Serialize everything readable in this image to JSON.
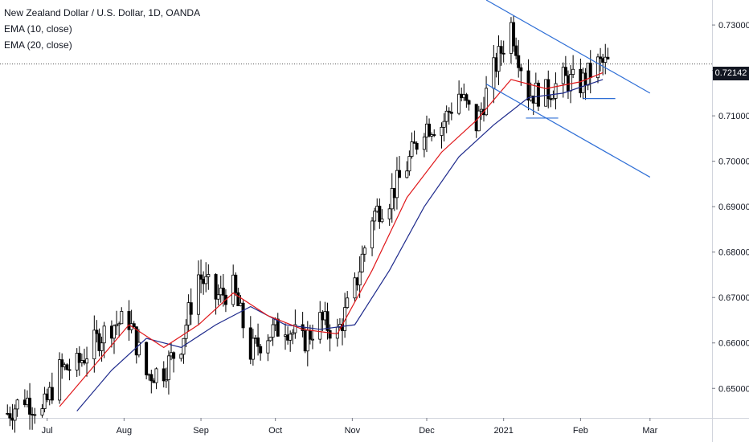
{
  "chart_data": {
    "type": "candlestick",
    "title": "New Zealand Dollar / U.S. Dollar, 1D, OANDA",
    "indicators": [
      "EMA (10, close)",
      "EMA (20, close)"
    ],
    "last_price": "0.72142",
    "y_ticks": [
      "0.73000",
      "0.72000",
      "0.71000",
      "0.70000",
      "0.69000",
      "0.68000",
      "0.67000",
      "0.66000",
      "0.65000"
    ],
    "y_tick_values": [
      0.73,
      0.72,
      0.71,
      0.7,
      0.69,
      0.68,
      0.67,
      0.66,
      0.65
    ],
    "ylim": [
      0.6435,
      0.7355
    ],
    "x_ticks": [
      "Jul",
      "Aug",
      "Sep",
      "Oct",
      "Nov",
      "Dec",
      "2021",
      "Feb",
      "Mar"
    ],
    "x_tick_dates": [
      "2020-07-01",
      "2020-08-01",
      "2020-09-01",
      "2020-10-01",
      "2020-11-01",
      "2020-12-01",
      "2021-01-01",
      "2021-02-01",
      "2021-03-01"
    ],
    "xlim": [
      "2020-06-12",
      "2021-03-26"
    ],
    "close_series": [
      {
        "date": "2020-06-15",
        "value": 0.6445
      },
      {
        "date": "2020-06-22",
        "value": 0.648
      },
      {
        "date": "2020-06-29",
        "value": 0.6445
      },
      {
        "date": "2020-07-06",
        "value": 0.654
      },
      {
        "date": "2020-07-13",
        "value": 0.655
      },
      {
        "date": "2020-07-20",
        "value": 0.66
      },
      {
        "date": "2020-07-27",
        "value": 0.664
      },
      {
        "date": "2020-08-03",
        "value": 0.665
      },
      {
        "date": "2020-08-10",
        "value": 0.653
      },
      {
        "date": "2020-08-17",
        "value": 0.654
      },
      {
        "date": "2020-08-24",
        "value": 0.66
      },
      {
        "date": "2020-08-31",
        "value": 0.675
      },
      {
        "date": "2020-09-07",
        "value": 0.67
      },
      {
        "date": "2020-09-14",
        "value": 0.672
      },
      {
        "date": "2020-09-21",
        "value": 0.658
      },
      {
        "date": "2020-09-28",
        "value": 0.662
      },
      {
        "date": "2020-10-05",
        "value": 0.664
      },
      {
        "date": "2020-10-12",
        "value": 0.66
      },
      {
        "date": "2020-10-19",
        "value": 0.665
      },
      {
        "date": "2020-10-26",
        "value": 0.662
      },
      {
        "date": "2020-11-02",
        "value": 0.672
      },
      {
        "date": "2020-11-09",
        "value": 0.688
      },
      {
        "date": "2020-11-16",
        "value": 0.692
      },
      {
        "date": "2020-11-23",
        "value": 0.699
      },
      {
        "date": "2020-11-30",
        "value": 0.708
      },
      {
        "date": "2020-12-07",
        "value": 0.708
      },
      {
        "date": "2020-12-14",
        "value": 0.715
      },
      {
        "date": "2020-12-21",
        "value": 0.708
      },
      {
        "date": "2020-12-28",
        "value": 0.72
      },
      {
        "date": "2021-01-04",
        "value": 0.73
      },
      {
        "date": "2021-01-11",
        "value": 0.715
      },
      {
        "date": "2021-01-18",
        "value": 0.715
      },
      {
        "date": "2021-01-25",
        "value": 0.718
      },
      {
        "date": "2021-02-01",
        "value": 0.717
      },
      {
        "date": "2021-02-08",
        "value": 0.7214
      }
    ],
    "ema10_series": [
      {
        "date": "2020-07-06",
        "value": 0.646
      },
      {
        "date": "2020-07-20",
        "value": 0.655
      },
      {
        "date": "2020-08-03",
        "value": 0.664
      },
      {
        "date": "2020-08-17",
        "value": 0.659
      },
      {
        "date": "2020-08-31",
        "value": 0.664
      },
      {
        "date": "2020-09-14",
        "value": 0.671
      },
      {
        "date": "2020-09-28",
        "value": 0.666
      },
      {
        "date": "2020-10-12",
        "value": 0.663
      },
      {
        "date": "2020-10-26",
        "value": 0.662
      },
      {
        "date": "2020-11-09",
        "value": 0.676
      },
      {
        "date": "2020-11-23",
        "value": 0.692
      },
      {
        "date": "2020-12-07",
        "value": 0.702
      },
      {
        "date": "2020-12-21",
        "value": 0.709
      },
      {
        "date": "2021-01-04",
        "value": 0.718
      },
      {
        "date": "2021-01-18",
        "value": 0.716
      },
      {
        "date": "2021-02-01",
        "value": 0.7175
      },
      {
        "date": "2021-02-10",
        "value": 0.7195
      }
    ],
    "ema20_series": [
      {
        "date": "2020-07-13",
        "value": 0.645
      },
      {
        "date": "2020-07-27",
        "value": 0.654
      },
      {
        "date": "2020-08-10",
        "value": 0.661
      },
      {
        "date": "2020-08-24",
        "value": 0.659
      },
      {
        "date": "2020-09-07",
        "value": 0.664
      },
      {
        "date": "2020-09-21",
        "value": 0.668
      },
      {
        "date": "2020-10-05",
        "value": 0.664
      },
      {
        "date": "2020-10-19",
        "value": 0.663
      },
      {
        "date": "2020-11-02",
        "value": 0.664
      },
      {
        "date": "2020-11-16",
        "value": 0.676
      },
      {
        "date": "2020-11-30",
        "value": 0.69
      },
      {
        "date": "2020-12-14",
        "value": 0.701
      },
      {
        "date": "2020-12-28",
        "value": 0.708
      },
      {
        "date": "2021-01-11",
        "value": 0.714
      },
      {
        "date": "2021-01-25",
        "value": 0.715
      },
      {
        "date": "2021-02-10",
        "value": 0.718
      }
    ],
    "trendlines": [
      {
        "name": "upper-channel",
        "from": {
          "date": "2020-12-25",
          "value": 0.7355
        },
        "to": {
          "date": "2021-03-01",
          "value": 0.715
        }
      },
      {
        "name": "lower-channel",
        "from": {
          "date": "2020-12-25",
          "value": 0.717
        },
        "to": {
          "date": "2021-03-01",
          "value": 0.6965
        }
      },
      {
        "name": "support-1",
        "from": {
          "date": "2021-01-10",
          "value": 0.7095
        },
        "to": {
          "date": "2021-01-23",
          "value": 0.7095
        }
      },
      {
        "name": "support-2",
        "from": {
          "date": "2021-02-02",
          "value": 0.7138
        },
        "to": {
          "date": "2021-02-15",
          "value": 0.7138
        }
      }
    ],
    "colors": {
      "bull_body": "#ffffff",
      "bear_body": "#000000",
      "wick": "#000000",
      "ema10": "#e0181b",
      "ema20": "#1e2a8c",
      "channel": "#2f6fd6",
      "grid": "#ffffff",
      "axis_text": "#131722"
    },
    "grid": false
  }
}
